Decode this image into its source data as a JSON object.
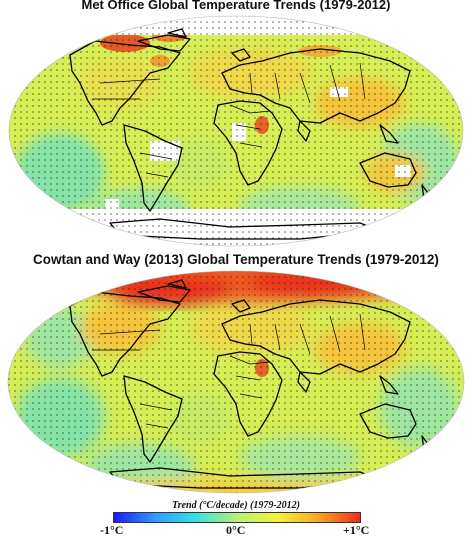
{
  "panels": [
    {
      "title": "Met Office Global Temperature Trends (1979-2012)",
      "coverage": "incomplete"
    },
    {
      "title": "Cowtan and Way (2013) Global Temperature Trends (1979-2012)",
      "coverage": "complete"
    }
  ],
  "colorbar": {
    "title": "Trend (°C/decade) (1979-2012)",
    "min_label": "-1°C",
    "mid_label": "0°C",
    "max_label": "+1°C",
    "min_value": -1,
    "max_value": 1,
    "colors": [
      "#1a1aff",
      "#2f9bff",
      "#39e0e0",
      "#b8f07a",
      "#f4f23a",
      "#f7a428",
      "#e8301c"
    ]
  },
  "colors": {
    "ocean_base": "#d7ee55",
    "cool": "#86e3a8",
    "warm": "#f6c43a",
    "hot": "#e8401e",
    "missing": "#ffffff",
    "coast": "#000000"
  }
}
